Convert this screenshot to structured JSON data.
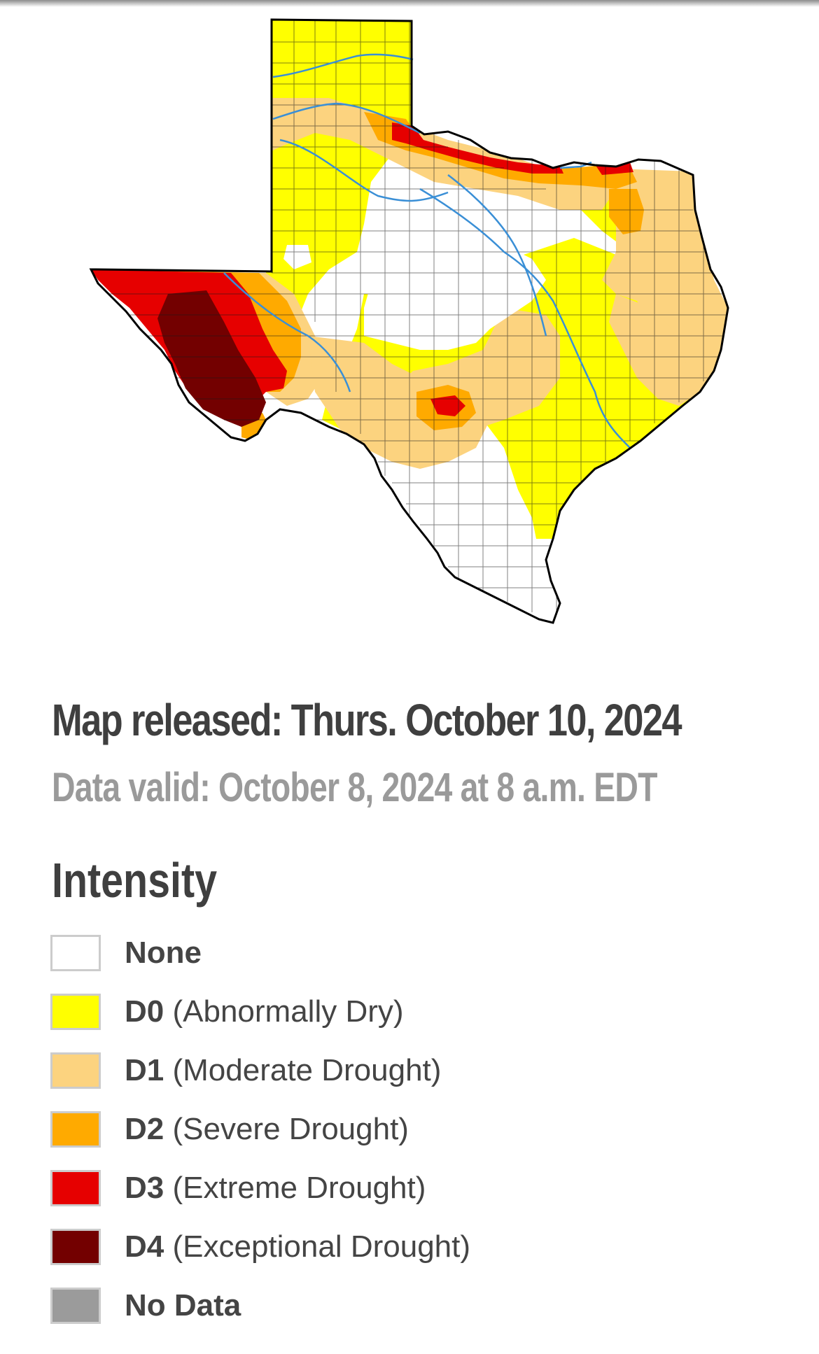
{
  "header": {
    "released": "Map released: Thurs. October 10, 2024",
    "valid": "Data valid: October 8, 2024 at 8 a.m. EDT"
  },
  "legend": {
    "title": "Intensity",
    "items": [
      {
        "code": "None",
        "desc": "",
        "color": "#ffffff"
      },
      {
        "code": "D0",
        "desc": "(Abnormally Dry)",
        "color": "#ffff00"
      },
      {
        "code": "D1",
        "desc": "(Moderate Drought)",
        "color": "#fcd37f"
      },
      {
        "code": "D2",
        "desc": "(Severe Drought)",
        "color": "#ffaa00"
      },
      {
        "code": "D3",
        "desc": "(Extreme Drought)",
        "color": "#e60000"
      },
      {
        "code": "D4",
        "desc": "(Exceptional Drought)",
        "color": "#730000"
      },
      {
        "code": "No Data",
        "desc": "",
        "color": "#9b9b9b"
      }
    ]
  },
  "map": {
    "region": "Texas",
    "river_color": "#3a8fd6",
    "border_color": "#000000"
  }
}
